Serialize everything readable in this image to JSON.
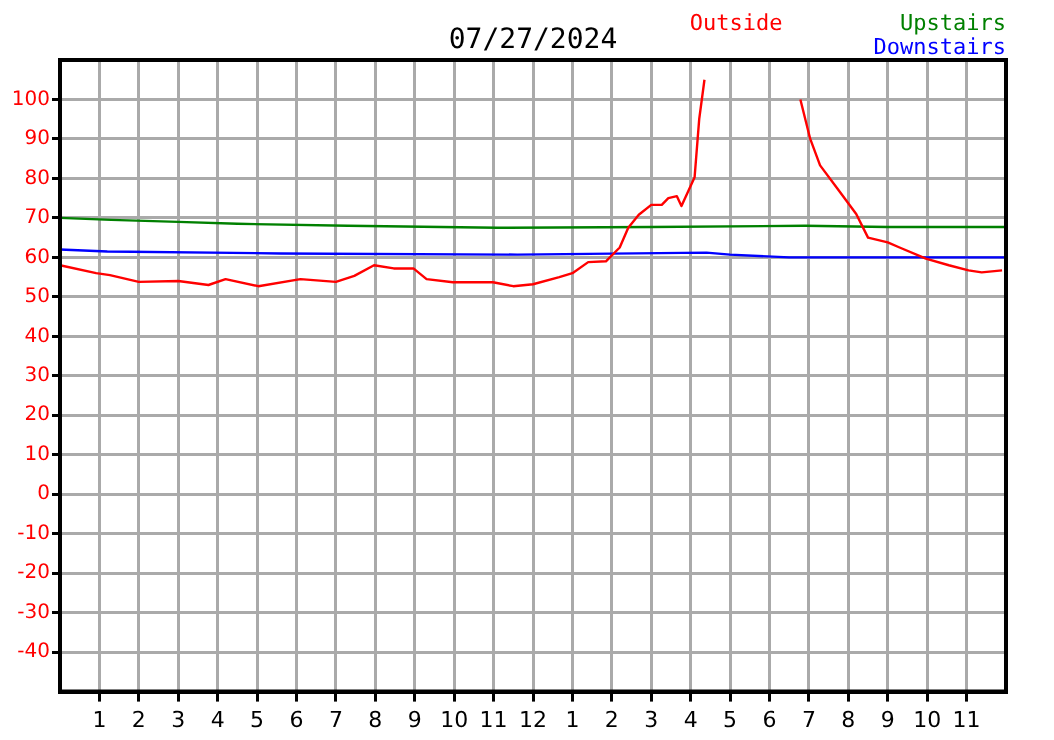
{
  "chart_data": {
    "type": "line",
    "title": "07/27/2024",
    "legend": "top right",
    "grid": true,
    "marker": "none",
    "line_style": "solid",
    "xlim": [
      "2024-07-27T00:00",
      "2024-07-28T00:00"
    ],
    "xticks": [
      {
        "value": "2024-07-27T01:00",
        "label": "1"
      },
      {
        "value": "2024-07-27T02:00",
        "label": "2"
      },
      {
        "value": "2024-07-27T03:00",
        "label": "3"
      },
      {
        "value": "2024-07-27T04:00",
        "label": "4"
      },
      {
        "value": "2024-07-27T05:00",
        "label": "5"
      },
      {
        "value": "2024-07-27T06:00",
        "label": "6"
      },
      {
        "value": "2024-07-27T07:00",
        "label": "7"
      },
      {
        "value": "2024-07-27T08:00",
        "label": "8"
      },
      {
        "value": "2024-07-27T09:00",
        "label": "9"
      },
      {
        "value": "2024-07-27T10:00",
        "label": "10"
      },
      {
        "value": "2024-07-27T11:00",
        "label": "11"
      },
      {
        "value": "2024-07-27T12:00",
        "label": "12"
      },
      {
        "value": "2024-07-27T13:00",
        "label": "1"
      },
      {
        "value": "2024-07-27T14:00",
        "label": "2"
      },
      {
        "value": "2024-07-27T15:00",
        "label": "3"
      },
      {
        "value": "2024-07-27T16:00",
        "label": "4"
      },
      {
        "value": "2024-07-27T17:00",
        "label": "5"
      },
      {
        "value": "2024-07-27T18:00",
        "label": "6"
      },
      {
        "value": "2024-07-27T19:00",
        "label": "7"
      },
      {
        "value": "2024-07-27T20:00",
        "label": "8"
      },
      {
        "value": "2024-07-27T21:00",
        "label": "9"
      },
      {
        "value": "2024-07-27T22:00",
        "label": "10"
      },
      {
        "value": "2024-07-27T23:00",
        "label": "11"
      }
    ],
    "ylim": [
      -50,
      110
    ],
    "yticks": [
      -40,
      -30,
      -20,
      -10,
      0,
      10,
      20,
      30,
      40,
      50,
      60,
      70,
      80,
      90,
      100
    ],
    "series": [
      {
        "name": "Outside",
        "color": "#ff0000",
        "x": [
          "2024-07-27T00:00",
          "2024-07-27T00:55",
          "2024-07-27T01:16",
          "2024-07-27T02:00",
          "2024-07-27T03:00",
          "2024-07-27T03:46",
          "2024-07-27T04:12",
          "2024-07-27T05:02",
          "2024-07-27T06:06",
          "2024-07-27T07:00",
          "2024-07-27T07:28",
          "2024-07-27T07:58",
          "2024-07-27T08:28",
          "2024-07-27T08:58",
          "2024-07-27T09:18",
          "2024-07-27T09:58",
          "2024-07-27T10:59",
          "2024-07-27T11:30",
          "2024-07-27T12:00",
          "2024-07-27T12:40",
          "2024-07-27T13:00",
          "2024-07-27T13:24",
          "2024-07-27T13:51",
          "2024-07-27T14:12",
          "2024-07-27T14:25",
          "2024-07-27T14:41",
          "2024-07-27T15:00",
          "2024-07-27T15:16",
          "2024-07-27T15:26",
          "2024-07-27T15:39",
          "2024-07-27T15:46",
          "2024-07-27T16:06",
          "2024-07-27T16:13",
          "2024-07-27T16:21",
          "2024-07-27T16:31",
          "2024-07-27T17:30",
          "2024-07-27T18:37",
          "2024-07-27T18:47",
          "2024-07-27T19:02",
          "2024-07-27T19:17",
          "2024-07-27T19:43",
          "2024-07-27T20:12",
          "2024-07-27T20:30",
          "2024-07-27T21:00",
          "2024-07-27T21:18",
          "2024-07-27T21:58",
          "2024-07-27T22:33",
          "2024-07-27T23:03",
          "2024-07-27T23:23",
          "2024-07-27T23:54"
        ],
        "values": [
          58,
          56,
          55.5,
          53.8,
          54,
          53,
          54.5,
          52.7,
          54.5,
          53.8,
          55.3,
          58,
          57.2,
          57.2,
          54.5,
          53.7,
          53.7,
          52.7,
          53.2,
          55,
          56,
          58.8,
          59,
          62.5,
          67.5,
          70.8,
          73.3,
          73.3,
          75,
          75.5,
          73,
          80.3,
          95,
          105,
          null,
          null,
          null,
          100,
          90,
          83.3,
          77.5,
          71,
          65,
          63.8,
          62.5,
          59.7,
          58,
          56.7,
          56.2,
          56.7
        ]
      },
      {
        "name": "Upstairs",
        "color": "#008000",
        "x": [
          "2024-07-27T00:00",
          "2024-07-27T01:18",
          "2024-07-27T03:00",
          "2024-07-27T04:30",
          "2024-07-27T07:18",
          "2024-07-27T11:06",
          "2024-07-27T15:00",
          "2024-07-27T18:54",
          "2024-07-27T21:00",
          "2024-07-28T00:00"
        ],
        "values": [
          70,
          69.5,
          69,
          68.5,
          68,
          67.5,
          67.7,
          68,
          67.7,
          67.7
        ]
      },
      {
        "name": "Downstairs",
        "color": "#0000ff",
        "x": [
          "2024-07-27T00:00",
          "2024-07-27T01:12",
          "2024-07-27T05:36",
          "2024-07-27T11:36",
          "2024-07-27T16:24",
          "2024-07-27T17:00",
          "2024-07-27T18:30",
          "2024-07-28T00:00"
        ],
        "values": [
          62,
          61.5,
          61,
          60.7,
          61.2,
          60.7,
          60,
          60
        ]
      }
    ]
  }
}
